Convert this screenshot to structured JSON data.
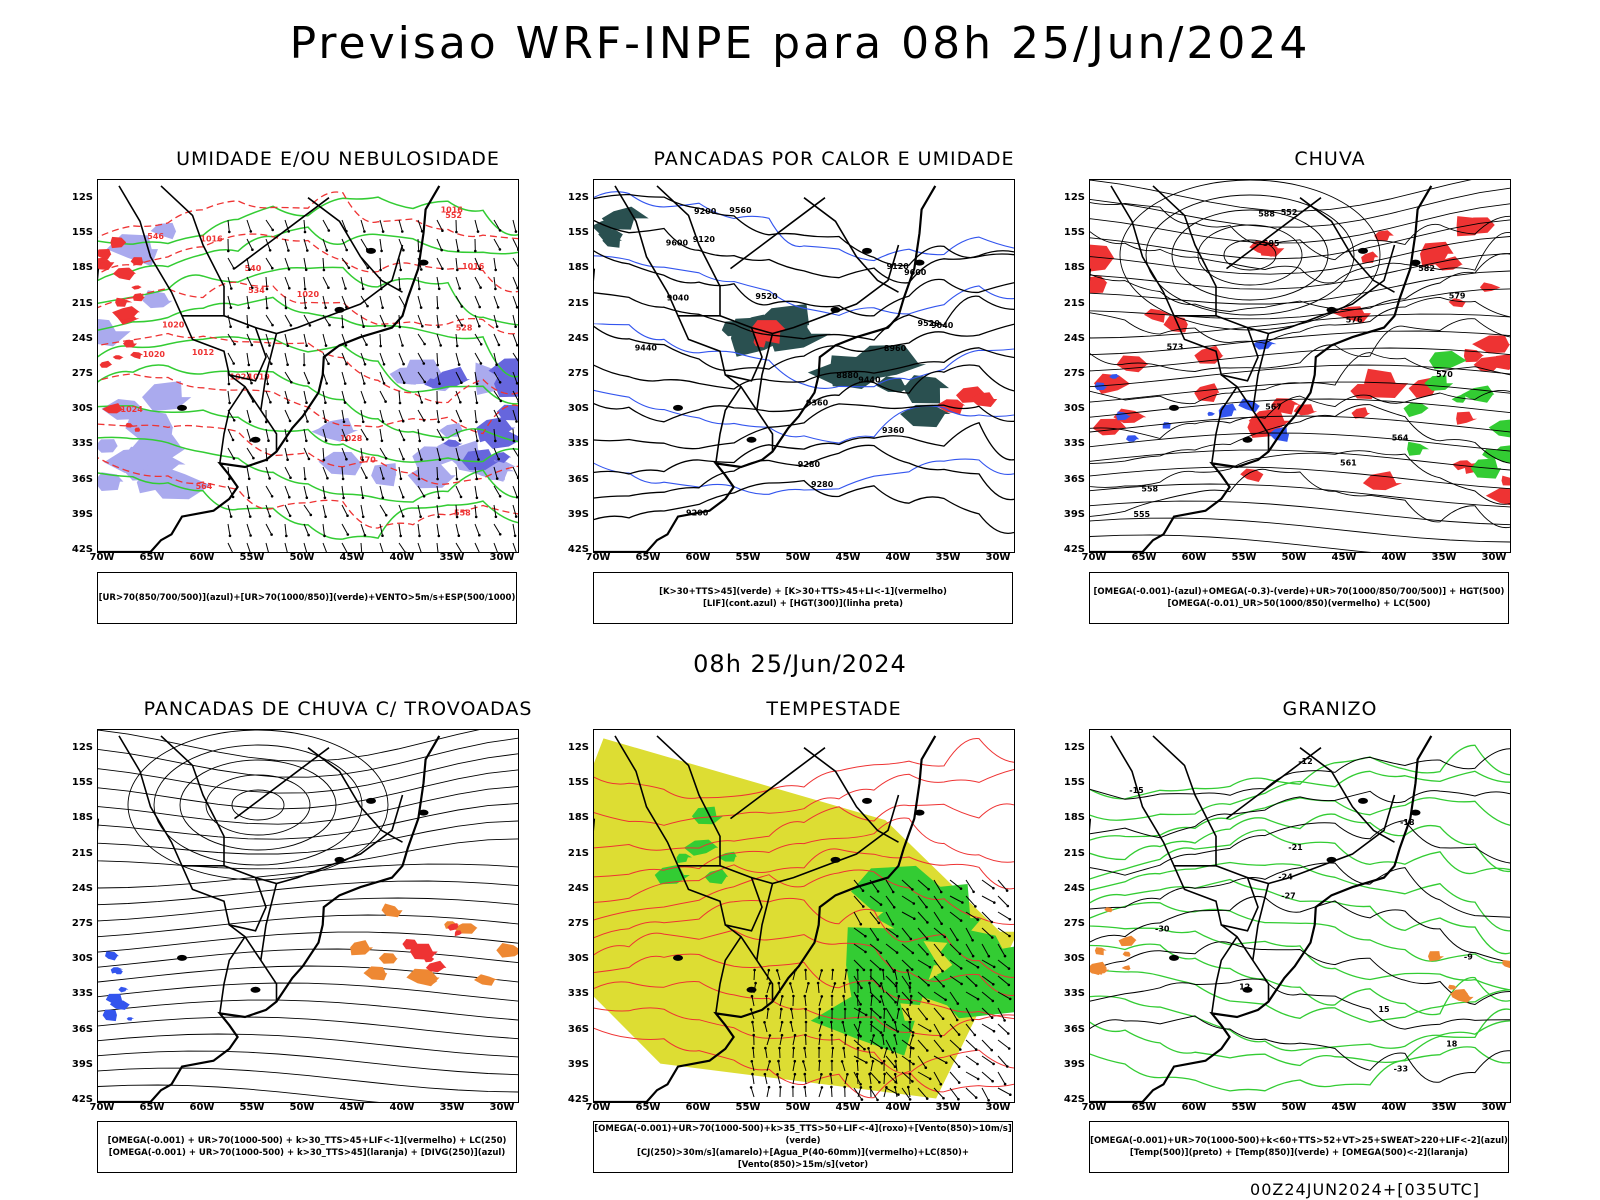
{
  "header": {
    "title": "Previsao WRF-INPE  para 08h 25/Jun/2024",
    "subtitle": "08h 25/Jun/2024",
    "footer": "00Z24JUN2024+[035UTC]"
  },
  "axes": {
    "lat_ticks": [
      "12S",
      "15S",
      "18S",
      "21S",
      "24S",
      "27S",
      "30S",
      "33S",
      "36S",
      "39S",
      "42S"
    ],
    "lon_ticks": [
      "70W",
      "65W",
      "60W",
      "55W",
      "50W",
      "45W",
      "40W",
      "35W",
      "30W"
    ]
  },
  "colors": {
    "green": "#33cc33",
    "blue": "#3355ee",
    "red": "#ee3333",
    "orange": "#ee8833",
    "yellow": "#dddd33",
    "lavender": "#aaaaee",
    "darkteal": "#2a5050"
  },
  "panels": [
    {
      "title": "UMIDADE E/OU NEBULOSIDADE",
      "legend": [
        "[UR>70(850/700/500)](azul)+[UR>70(1000/850)](verde)+VENTO>5m/s+ESP(500/1000)"
      ],
      "contour_labels": [
        "1016",
        "1016",
        "1016",
        "1020",
        "1020",
        "1020",
        "1024",
        "1024",
        "1028",
        "570",
        "564",
        "558",
        "552",
        "546",
        "540",
        "534",
        "528",
        "1012",
        "1019"
      ]
    },
    {
      "title": "PANCADAS POR CALOR E UMIDADE",
      "legend": [
        "[K>30+TTS>45](verde)  +  [K>30+TTS>45+LI<-1](vermelho)",
        "[LIF](cont.azul)  +  [HGT(300)](linha preta)"
      ],
      "contour_labels": [
        "9560",
        "9600",
        "9600",
        "9520",
        "9520",
        "9440",
        "9440",
        "9360",
        "9360",
        "9280",
        "9280",
        "9200",
        "9200",
        "9120",
        "9120",
        "9040",
        "9040",
        "8960",
        "8880"
      ]
    },
    {
      "title": "CHUVA",
      "legend": [
        "[OMEGA(-0.001)-(azul)+OMEGA(-0.3)-(verde)+UR>70(1000/850/700/500)]  +  HGT(500)",
        "[OMEGA(-0.01)_UR>50(1000/850)(vermelho)  +  LC(500)"
      ],
      "contour_labels": [
        "588",
        "585",
        "582",
        "579",
        "576",
        "573",
        "570",
        "567",
        "564",
        "561",
        "558",
        "555",
        "552"
      ]
    },
    {
      "title": "PANCADAS DE CHUVA C/ TROVOADAS",
      "legend": [
        "[OMEGA(-0.001)  +  UR>70(1000-500)  +  k>30_TTS>45+LIF<-1](vermelho)  +  LC(250)",
        "[OMEGA(-0.001)  +  UR>70(1000-500)  +  k>30_TTS>45](laranja)  +  [DIVG(250)](azul)"
      ],
      "contour_labels": []
    },
    {
      "title": "TEMPESTADE",
      "legend": [
        "[OMEGA(-0.001)+UR>70(1000-500)+k>35_TTS>50+LIF<-4](roxo)+[Vento(850)>10m/s](verde)",
        "[CJ(250)>30m/s](amarelo)+[Agua_P(40-60mm)](vermelho)+LC(850)+[Vento(850)>15m/s](vetor)"
      ],
      "contour_labels": []
    },
    {
      "title": "GRANIZO",
      "legend": [
        "[OMEGA(-0.001)+UR>70(1000-500)+k<60+TTS>52+VT>25+SWEAT>220+LIF<-2](azul)",
        "[Temp(500)](preto)  +  [Temp(850)](verde)  +  [OMEGA(500)<-2](laranja)"
      ],
      "contour_labels": [
        "-12",
        "-15",
        "-18",
        "-21",
        "-24",
        "-27",
        "-30",
        "-9",
        "12",
        "15",
        "18",
        "-33"
      ]
    }
  ]
}
